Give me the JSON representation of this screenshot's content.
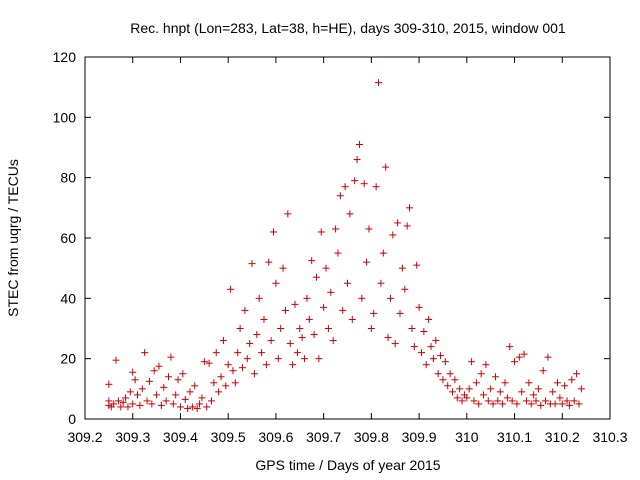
{
  "chart_data": {
    "type": "scatter",
    "title": "Rec. hnpt (Lon=283, Lat=38, h=HE), days 309-310, 2015, window 001",
    "xlabel": "GPS time / Days of year 2015",
    "ylabel": "STEC from uqrg / TECUs",
    "xlim": [
      309.2,
      310.3
    ],
    "ylim": [
      0,
      120
    ],
    "x_ticks": [
      "309.2",
      "309.3",
      "309.4",
      "309.5",
      "309.6",
      "309.7",
      "309.8",
      "309.9",
      "310",
      "310.1",
      "310.2",
      "310.3"
    ],
    "y_ticks": [
      "0",
      "20",
      "40",
      "60",
      "80",
      "100",
      "120"
    ],
    "marker": "+",
    "color": "#cc0000",
    "grid": false,
    "legend": "none",
    "series": [
      {
        "points": [
          [
            309.25,
            4.5
          ],
          [
            309.25,
            6
          ],
          [
            309.25,
            11.5
          ],
          [
            309.255,
            4
          ],
          [
            309.26,
            5
          ],
          [
            309.265,
            19.5
          ],
          [
            309.27,
            6
          ],
          [
            309.275,
            4
          ],
          [
            309.28,
            5.5
          ],
          [
            309.285,
            7
          ],
          [
            309.29,
            4
          ],
          [
            309.295,
            9
          ],
          [
            309.3,
            15.5
          ],
          [
            309.3,
            5
          ],
          [
            309.305,
            13
          ],
          [
            309.31,
            8
          ],
          [
            309.315,
            4.5
          ],
          [
            309.32,
            10
          ],
          [
            309.325,
            22
          ],
          [
            309.33,
            6
          ],
          [
            309.335,
            12.5
          ],
          [
            309.34,
            5
          ],
          [
            309.345,
            16
          ],
          [
            309.35,
            8
          ],
          [
            309.355,
            17.5
          ],
          [
            309.36,
            4.5
          ],
          [
            309.365,
            10.5
          ],
          [
            309.37,
            6
          ],
          [
            309.375,
            14
          ],
          [
            309.38,
            20.5
          ],
          [
            309.385,
            5
          ],
          [
            309.39,
            8
          ],
          [
            309.395,
            13
          ],
          [
            309.4,
            4
          ],
          [
            309.405,
            15
          ],
          [
            309.41,
            6.5
          ],
          [
            309.415,
            3.5
          ],
          [
            309.42,
            9
          ],
          [
            309.425,
            4
          ],
          [
            309.43,
            11
          ],
          [
            309.435,
            3.5
          ],
          [
            309.44,
            5
          ],
          [
            309.445,
            7
          ],
          [
            309.45,
            19
          ],
          [
            309.455,
            4
          ],
          [
            309.46,
            18.5
          ],
          [
            309.465,
            6
          ],
          [
            309.47,
            12
          ],
          [
            309.475,
            22
          ],
          [
            309.48,
            9
          ],
          [
            309.485,
            14
          ],
          [
            309.49,
            26
          ],
          [
            309.495,
            11
          ],
          [
            309.5,
            18
          ],
          [
            309.505,
            43
          ],
          [
            309.51,
            16
          ],
          [
            309.515,
            12
          ],
          [
            309.52,
            22
          ],
          [
            309.525,
            30
          ],
          [
            309.53,
            17
          ],
          [
            309.535,
            36
          ],
          [
            309.54,
            20
          ],
          [
            309.545,
            25
          ],
          [
            309.55,
            51.5
          ],
          [
            309.555,
            15
          ],
          [
            309.56,
            28
          ],
          [
            309.565,
            40
          ],
          [
            309.57,
            22
          ],
          [
            309.575,
            33
          ],
          [
            309.58,
            18
          ],
          [
            309.585,
            52
          ],
          [
            309.59,
            26
          ],
          [
            309.595,
            62
          ],
          [
            309.6,
            45
          ],
          [
            309.605,
            20
          ],
          [
            309.61,
            30
          ],
          [
            309.615,
            50
          ],
          [
            309.62,
            36
          ],
          [
            309.625,
            68
          ],
          [
            309.63,
            25
          ],
          [
            309.635,
            18
          ],
          [
            309.64,
            38
          ],
          [
            309.645,
            22
          ],
          [
            309.65,
            30
          ],
          [
            309.655,
            27
          ],
          [
            309.66,
            20
          ],
          [
            309.665,
            40
          ],
          [
            309.67,
            33
          ],
          [
            309.675,
            52.5
          ],
          [
            309.68,
            28
          ],
          [
            309.685,
            47
          ],
          [
            309.69,
            20
          ],
          [
            309.695,
            62
          ],
          [
            309.7,
            37
          ],
          [
            309.705,
            50
          ],
          [
            309.71,
            30
          ],
          [
            309.715,
            42
          ],
          [
            309.72,
            26
          ],
          [
            309.725,
            63
          ],
          [
            309.73,
            55
          ],
          [
            309.735,
            74
          ],
          [
            309.74,
            36
          ],
          [
            309.745,
            77
          ],
          [
            309.75,
            45
          ],
          [
            309.755,
            68
          ],
          [
            309.76,
            33
          ],
          [
            309.765,
            79
          ],
          [
            309.77,
            86
          ],
          [
            309.775,
            91
          ],
          [
            309.78,
            40
          ],
          [
            309.785,
            78
          ],
          [
            309.79,
            52
          ],
          [
            309.795,
            63
          ],
          [
            309.8,
            30
          ],
          [
            309.805,
            35
          ],
          [
            309.81,
            77
          ],
          [
            309.815,
            111.5
          ],
          [
            309.82,
            45
          ],
          [
            309.825,
            55
          ],
          [
            309.83,
            83.5
          ],
          [
            309.835,
            27
          ],
          [
            309.84,
            40
          ],
          [
            309.845,
            61
          ],
          [
            309.85,
            25
          ],
          [
            309.855,
            65
          ],
          [
            309.86,
            35
          ],
          [
            309.865,
            50
          ],
          [
            309.87,
            43
          ],
          [
            309.875,
            64
          ],
          [
            309.88,
            70
          ],
          [
            309.885,
            30
          ],
          [
            309.89,
            24
          ],
          [
            309.895,
            51
          ],
          [
            309.9,
            37
          ],
          [
            309.905,
            22
          ],
          [
            309.91,
            29
          ],
          [
            309.915,
            18
          ],
          [
            309.92,
            33
          ],
          [
            309.925,
            24
          ],
          [
            309.93,
            20
          ],
          [
            309.935,
            26
          ],
          [
            309.94,
            15
          ],
          [
            309.945,
            21
          ],
          [
            309.95,
            13
          ],
          [
            309.955,
            19
          ],
          [
            309.96,
            11
          ],
          [
            309.965,
            15
          ],
          [
            309.97,
            9
          ],
          [
            309.975,
            13
          ],
          [
            309.98,
            7
          ],
          [
            309.985,
            10
          ],
          [
            309.99,
            6
          ],
          [
            309.995,
            8
          ],
          [
            310.0,
            7
          ],
          [
            310.005,
            10
          ],
          [
            310.01,
            19
          ],
          [
            310.015,
            6
          ],
          [
            310.02,
            12
          ],
          [
            310.025,
            5
          ],
          [
            310.03,
            15
          ],
          [
            310.035,
            8
          ],
          [
            310.04,
            18
          ],
          [
            310.045,
            6
          ],
          [
            310.05,
            10
          ],
          [
            310.055,
            5
          ],
          [
            310.06,
            14
          ],
          [
            310.065,
            6
          ],
          [
            310.07,
            9
          ],
          [
            310.075,
            5
          ],
          [
            310.08,
            12
          ],
          [
            310.085,
            7
          ],
          [
            310.09,
            24
          ],
          [
            310.095,
            6
          ],
          [
            310.1,
            19
          ],
          [
            310.105,
            5
          ],
          [
            310.11,
            20.5
          ],
          [
            310.115,
            9
          ],
          [
            310.12,
            21.5
          ],
          [
            310.125,
            6
          ],
          [
            310.13,
            12
          ],
          [
            310.135,
            5
          ],
          [
            310.14,
            8
          ],
          [
            310.145,
            6
          ],
          [
            310.15,
            10
          ],
          [
            310.155,
            4.5
          ],
          [
            310.16,
            16
          ],
          [
            310.165,
            6
          ],
          [
            310.17,
            20.5
          ],
          [
            310.175,
            5
          ],
          [
            310.18,
            9
          ],
          [
            310.185,
            5
          ],
          [
            310.19,
            12
          ],
          [
            310.195,
            7
          ],
          [
            310.2,
            5
          ],
          [
            310.205,
            11
          ],
          [
            310.21,
            6
          ],
          [
            310.215,
            4.5
          ],
          [
            310.22,
            13
          ],
          [
            310.225,
            6
          ],
          [
            310.23,
            15
          ],
          [
            310.235,
            5
          ],
          [
            310.24,
            10
          ]
        ]
      }
    ]
  }
}
